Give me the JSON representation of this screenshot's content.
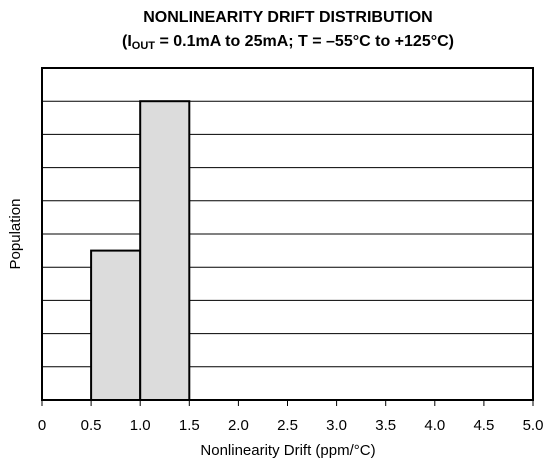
{
  "chart_data": {
    "type": "histogram",
    "title": "NONLINEARITY DRIFT DISTRIBUTION",
    "subtitle": [
      "(I",
      "OUT",
      " = 0.1mA to 25mA; T = –55°C to +125°C)"
    ],
    "xlabel": "Nonlinearity Drift (ppm/°C)",
    "ylabel": "Population",
    "bins": [
      0.5,
      1.0,
      1.5
    ],
    "values": [
      4.5,
      9
    ],
    "color": "#dcdcdc",
    "xlim": [
      0,
      5
    ],
    "xticks": [
      0,
      0.5,
      {
        "value": 1,
        "label": "1.0"
      },
      1.5,
      {
        "value": 2,
        "label": "2.0"
      },
      2.5,
      {
        "value": 3,
        "label": "3.0"
      },
      3.5,
      {
        "value": 4,
        "label": "4.0"
      },
      4.5,
      {
        "value": 5,
        "label": "5.0"
      }
    ],
    "ylim": [
      0,
      10
    ],
    "yticks": [
      0,
      1,
      2,
      3,
      4,
      5,
      6,
      7,
      8,
      9,
      10
    ],
    "grid": true
  }
}
